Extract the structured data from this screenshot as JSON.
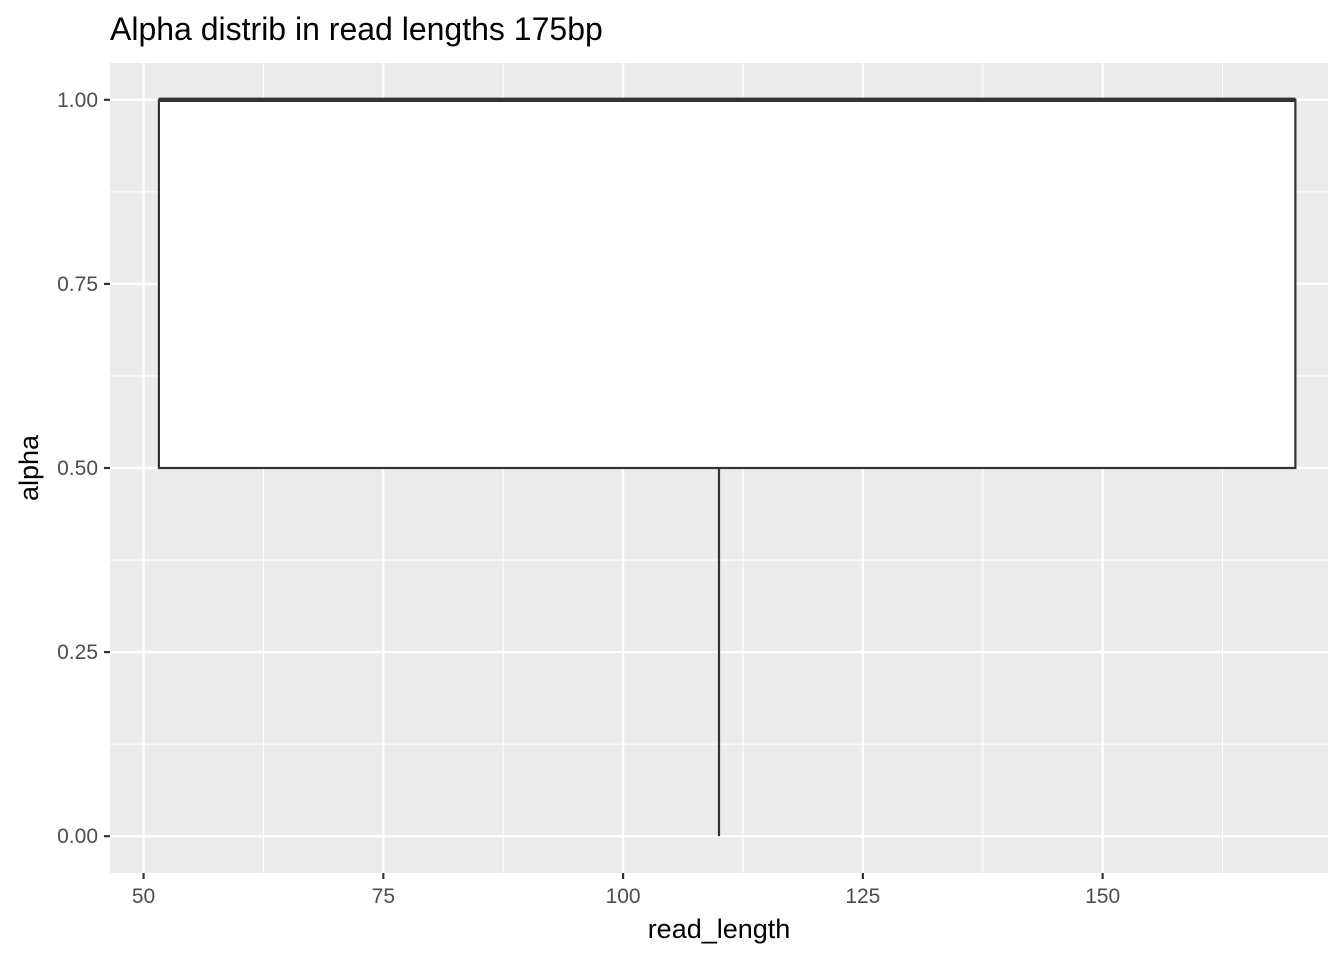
{
  "chart_data": {
    "type": "boxplot",
    "title": "Alpha distrib in read lengths 175bp",
    "xlabel": "read_length",
    "ylabel": "alpha",
    "xlim": [
      46.5,
      173.5
    ],
    "ylim": [
      -0.05,
      1.05
    ],
    "x_ticks": [
      50,
      75,
      100,
      125,
      150
    ],
    "x_tick_labels": [
      "50",
      "75",
      "100",
      "125",
      "150"
    ],
    "y_ticks": [
      0,
      0.25,
      0.5,
      0.75,
      1.0
    ],
    "y_tick_labels": [
      "0.00",
      "0.25",
      "0.50",
      "0.75",
      "1.00"
    ],
    "grid": true,
    "boxes": [
      {
        "x": 110,
        "box_x_range": [
          51.6,
          170.1
        ],
        "whisker_low": 0.0,
        "q1": 0.5,
        "median": 1.0,
        "q3": 1.0,
        "whisker_high": 1.0
      }
    ],
    "colors": {
      "panel_background": "#ebebeb",
      "grid": "#ffffff",
      "box_fill": "#ffffff",
      "box_line": "#333333",
      "tick_text": "#4d4d4d"
    }
  }
}
